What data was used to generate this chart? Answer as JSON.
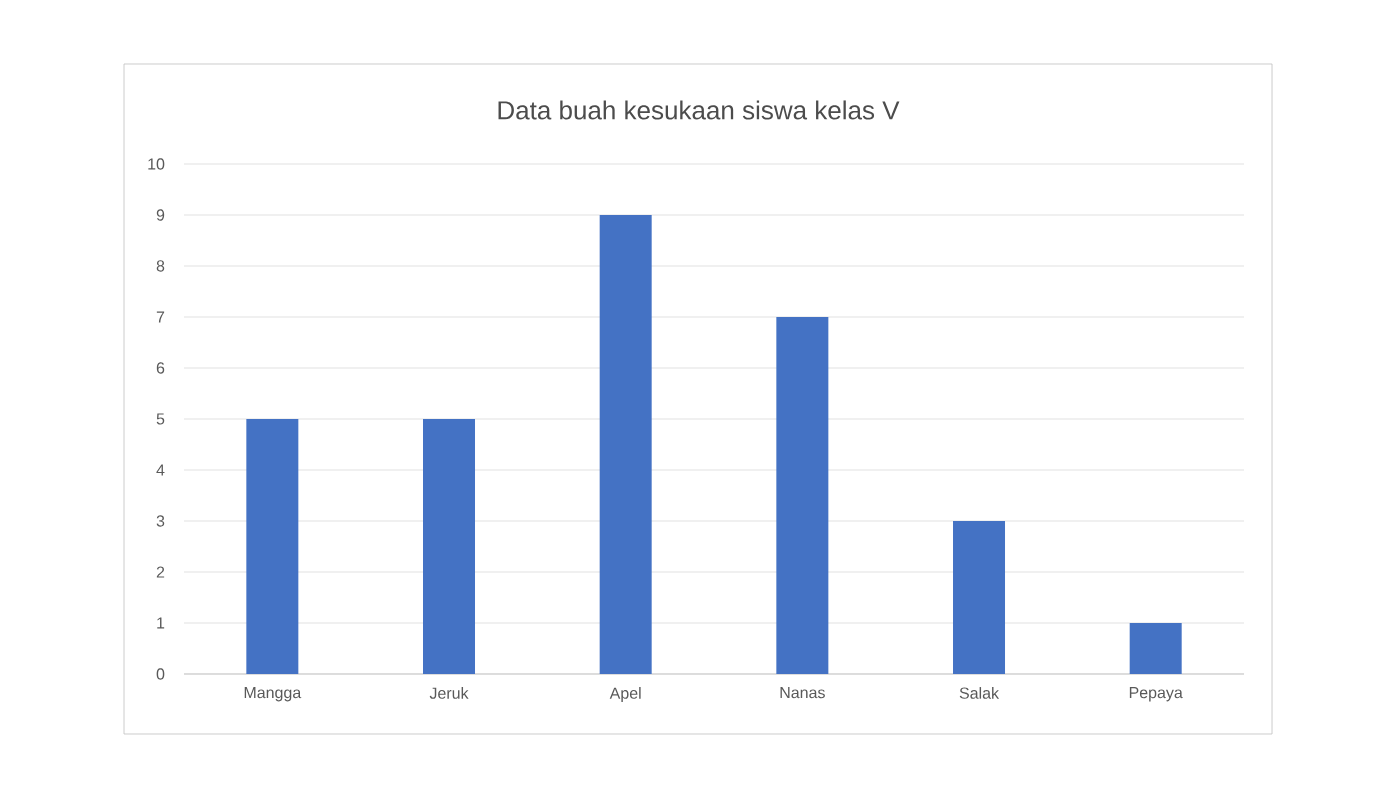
{
  "chart_data": {
    "type": "bar",
    "title": "Data buah kesukaan siswa kelas V",
    "categories": [
      "Mangga",
      "Jeruk",
      "Apel",
      "Nanas",
      "Salak",
      "Pepaya"
    ],
    "values": [
      5,
      5,
      9,
      7,
      3,
      1
    ],
    "color": "#4472c4",
    "ylim": [
      0,
      10
    ],
    "yticks": [
      0,
      1,
      2,
      3,
      4,
      5,
      6,
      7,
      8,
      9,
      10
    ],
    "grid": "y"
  }
}
